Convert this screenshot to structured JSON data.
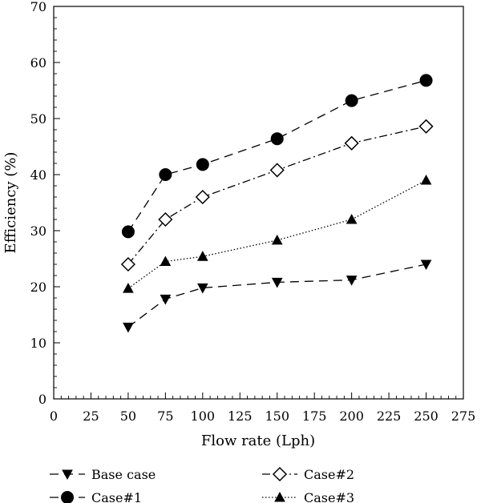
{
  "chart_data": {
    "type": "line",
    "title": "",
    "xlabel": "Flow rate (Lph)",
    "ylabel": "Efficiency (%)",
    "xlim": [
      0,
      275
    ],
    "ylim": [
      0,
      70
    ],
    "x_ticks": [
      0,
      25,
      50,
      75,
      100,
      125,
      150,
      175,
      200,
      225,
      250,
      275
    ],
    "y_ticks": [
      0,
      10,
      20,
      30,
      40,
      50,
      60,
      70
    ],
    "x_tick_labels": [
      "0",
      "25",
      "50",
      "75",
      "100",
      "125",
      "150",
      "175",
      "200",
      "225",
      "250",
      "275"
    ],
    "y_tick_labels": [
      "0",
      "10",
      "20",
      "30",
      "40",
      "50",
      "60",
      "70"
    ],
    "grid": false,
    "legend_position": "bottom",
    "x": [
      50,
      75,
      100,
      150,
      200,
      250
    ],
    "series": [
      {
        "name": "Base case",
        "values": [
          12.8,
          17.8,
          19.8,
          20.8,
          21.2,
          24.0
        ],
        "marker": "triangle-down",
        "line_style": "long-dash",
        "marker_fill": "#000000"
      },
      {
        "name": "Case#1",
        "values": [
          29.8,
          40.0,
          41.8,
          46.4,
          53.2,
          56.8
        ],
        "marker": "circle",
        "line_style": "long-dash",
        "marker_fill": "#000000"
      },
      {
        "name": "Case#2",
        "values": [
          24.0,
          32.0,
          36.0,
          40.8,
          45.6,
          48.6
        ],
        "marker": "diamond",
        "line_style": "dash-dot",
        "marker_fill": "#ffffff"
      },
      {
        "name": "Case#3",
        "values": [
          19.7,
          24.5,
          25.4,
          28.3,
          32.0,
          39.0
        ],
        "marker": "triangle-up",
        "line_style": "dotted",
        "marker_fill": "#000000"
      }
    ]
  }
}
